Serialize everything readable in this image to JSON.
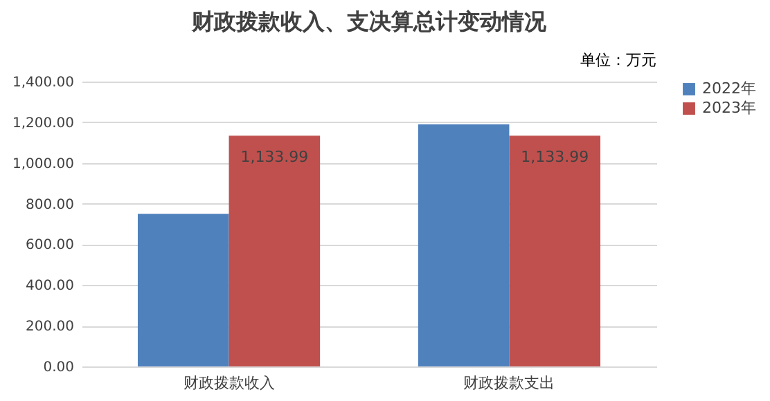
{
  "chart_data": {
    "type": "bar",
    "title": "财政拨款收入、支决算总计变动情况",
    "annotations": [
      "单位：万元"
    ],
    "categories": [
      "财政拨款收入",
      "财政拨款支出"
    ],
    "series": [
      {
        "name": "2022年",
        "color": "#4f81bd",
        "values": [
          750,
          1190
        ]
      },
      {
        "name": "2023年",
        "color": "#c0504d",
        "values": [
          1133.99,
          1133.99
        ],
        "value_labels": [
          "1,133.99",
          "1,133.99"
        ]
      }
    ],
    "ylim": [
      0,
      1400
    ],
    "yticks": [
      {
        "value": 0,
        "label": "0.00"
      },
      {
        "value": 200,
        "label": "200.00"
      },
      {
        "value": 400,
        "label": "400.00"
      },
      {
        "value": 600,
        "label": "600.00"
      },
      {
        "value": 800,
        "label": "800.00"
      },
      {
        "value": 1000,
        "label": "1,000.00"
      },
      {
        "value": 1200,
        "label": "1,200.00"
      },
      {
        "value": 1400,
        "label": "1,400.00"
      }
    ],
    "grid": "y",
    "legend": "right"
  }
}
